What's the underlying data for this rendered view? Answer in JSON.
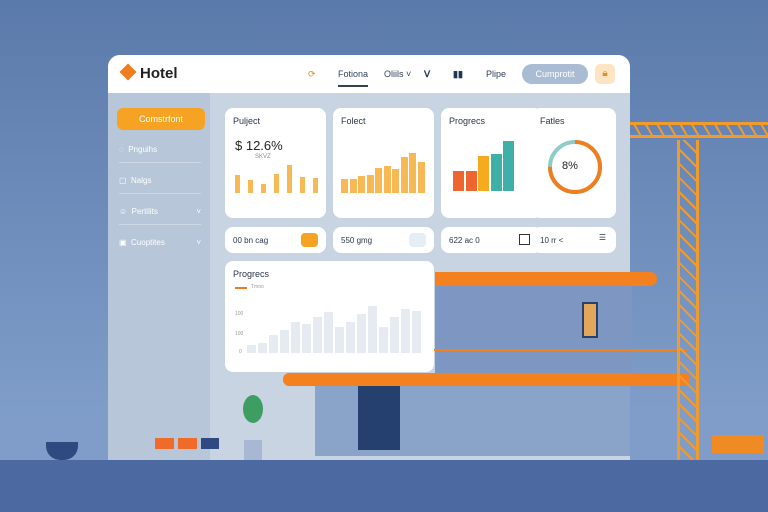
{
  "header": {
    "logo": "Hotel",
    "nav": [
      "Fotiona",
      "Oliils ˅",
      "Plipe"
    ],
    "cta": "Cumprotit"
  },
  "sidebar": {
    "primary": "Comstrfont",
    "items": [
      {
        "label": "Pnguihs",
        "icon": "bell-icon"
      },
      {
        "label": "Nalgs",
        "icon": "square-icon"
      },
      {
        "label": "Pertilits",
        "icon": "smile-icon"
      },
      {
        "label": "Cuoptites",
        "icon": "calendar-icon"
      }
    ]
  },
  "cards": [
    {
      "title": "Pulject",
      "value": "$ 12.6%",
      "sub": "SKVZ",
      "bars": [
        0.6,
        0.45,
        0.3,
        0.65,
        0.95,
        0.55,
        0.5
      ],
      "color": "#f7b955"
    },
    {
      "title": "Folect",
      "bars": [
        0.35,
        0.35,
        0.43,
        0.45,
        0.63,
        0.68,
        0.6,
        0.9,
        1.0,
        0.78
      ],
      "color": "#f7b955"
    },
    {
      "title": "Progrecs",
      "bars": [
        0.4,
        0.4,
        0.7,
        0.75,
        1.0
      ],
      "colors": [
        "#ef6530",
        "#ef6530",
        "#f5ab1d",
        "#3fb0a7",
        "#3fb0a7"
      ]
    },
    {
      "title": "Fatles",
      "value": "8%",
      "progress": 0.75
    }
  ],
  "mini": [
    "00 bn cag",
    "550 gmg",
    "622 ac 0",
    "10 rr <"
  ],
  "progress_card": {
    "title": "Progrecs",
    "legend": "Tmoo",
    "ticks": [
      "100",
      "100",
      "0"
    ],
    "bars": [
      0.15,
      0.2,
      0.35,
      0.45,
      0.6,
      0.55,
      0.7,
      0.78,
      0.5,
      0.6,
      0.75,
      0.9,
      0.5,
      0.7,
      0.85,
      0.8
    ]
  }
}
